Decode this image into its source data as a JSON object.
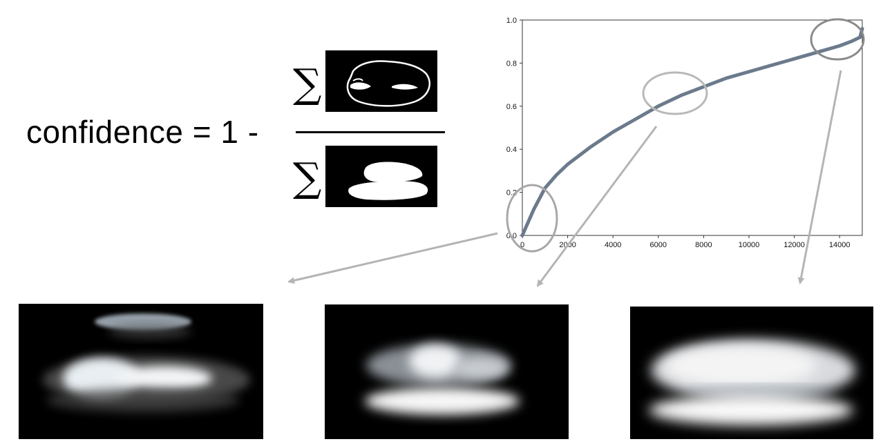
{
  "formula": {
    "lhs": "confidence = 1 -",
    "numerator_symbol": "∑",
    "denominator_symbol": "∑"
  },
  "chart_data": {
    "type": "line",
    "x": [
      0,
      500,
      1000,
      1500,
      2000,
      3000,
      4000,
      5000,
      6000,
      7000,
      8000,
      9000,
      10000,
      11000,
      12000,
      13000,
      14000,
      14500,
      14900,
      15000
    ],
    "y": [
      0.0,
      0.12,
      0.22,
      0.28,
      0.33,
      0.41,
      0.48,
      0.54,
      0.6,
      0.65,
      0.69,
      0.73,
      0.76,
      0.79,
      0.82,
      0.85,
      0.88,
      0.9,
      0.92,
      0.96
    ],
    "xlim": [
      0,
      15000
    ],
    "ylim": [
      0,
      1.0
    ],
    "xticks": [
      "0",
      "2000",
      "4000",
      "6000",
      "8000",
      "10000",
      "12000",
      "14000"
    ],
    "yticks": [
      "0.0",
      "0.2",
      "0.4",
      "0.6",
      "0.8",
      "1.0"
    ],
    "grid": false,
    "line_color": "#6b7a8c"
  },
  "colors": {
    "highlight": "#a8a8a8",
    "arrow": "#b4b4b4"
  },
  "images": [
    {
      "name": "low-confidence-heatmap"
    },
    {
      "name": "mid-confidence-heatmap"
    },
    {
      "name": "high-confidence-heatmap"
    }
  ]
}
